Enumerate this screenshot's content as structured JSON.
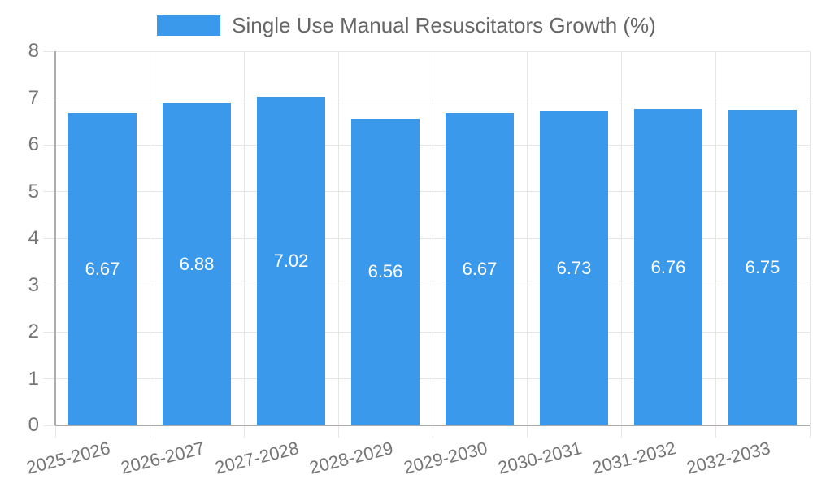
{
  "chart_data": {
    "type": "bar",
    "title": "Single Use Manual Resuscitators Growth (%)",
    "legend": {
      "position": "top",
      "entries": [
        {
          "label": "Single Use Manual Resuscitators Growth (%)",
          "color": "#3B99EC"
        }
      ]
    },
    "categories": [
      "2025-2026",
      "2026-2027",
      "2027-2028",
      "2028-2029",
      "2029-2030",
      "2030-2031",
      "2031-2032",
      "2032-2033"
    ],
    "series": [
      {
        "name": "Single Use Manual Resuscitators Growth (%)",
        "values": [
          6.67,
          6.88,
          7.02,
          6.56,
          6.67,
          6.73,
          6.76,
          6.75
        ],
        "value_labels": [
          "6.67",
          "6.88",
          "7.02",
          "6.56",
          "6.67",
          "6.73",
          "6.76",
          "6.75"
        ],
        "color": "#3B99EC"
      }
    ],
    "xlabel": "",
    "ylabel": "",
    "ylim": [
      0,
      8
    ],
    "yticks": [
      0,
      1,
      2,
      3,
      4,
      5,
      6,
      7,
      8
    ],
    "ytick_labels": [
      "0",
      "1",
      "2",
      "3",
      "4",
      "5",
      "6",
      "7",
      "8"
    ],
    "grid": true,
    "colors": {
      "bar": "#3B99EC",
      "grid": "#E6E6E6",
      "axis": "#ACACAC",
      "tick_label": "#757575",
      "legend_text": "#666666",
      "value_label": "#FFFFFF",
      "background": "#FFFFFF"
    }
  }
}
